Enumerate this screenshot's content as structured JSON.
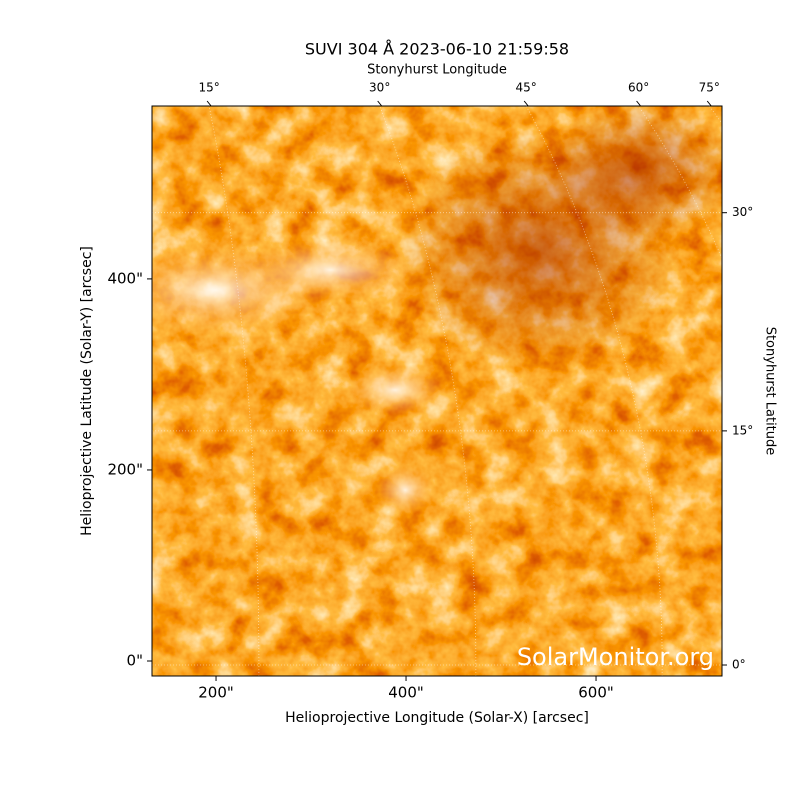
{
  "chart_data": {
    "type": "image",
    "title": "SUVI 304 Å 2023-06-10 21:59:58",
    "xlabel": "Helioprojective Longitude (Solar-X) [arcsec]",
    "ylabel": "Helioprojective Latitude (Solar-Y) [arcsec]",
    "x2label": "Stonyhurst Longitude",
    "y2label": "Stonyhurst Latitude",
    "watermark": "SolarMonitor.org",
    "xlim": [
      132.6,
      732.6
    ],
    "ylim": [
      -15.7,
      581
    ],
    "xticks": [
      {
        "value": 200,
        "label": "200\""
      },
      {
        "value": 400,
        "label": "400\""
      },
      {
        "value": 600,
        "label": "600\""
      }
    ],
    "yticks": [
      {
        "value": 0,
        "label": "0\""
      },
      {
        "value": 200,
        "label": "200\""
      },
      {
        "value": 400,
        "label": "400\""
      }
    ],
    "x2ticks": [
      {
        "value": 15,
        "label": "15°"
      },
      {
        "value": 30,
        "label": "30°"
      },
      {
        "value": 45,
        "label": "45°"
      },
      {
        "value": 60,
        "label": "60°"
      },
      {
        "value": 75,
        "label": "75°"
      }
    ],
    "y2ticks": [
      {
        "value": 0,
        "label": "0°"
      },
      {
        "value": 15,
        "label": "15°"
      },
      {
        "value": 30,
        "label": "30°"
      }
    ],
    "grid": true
  }
}
